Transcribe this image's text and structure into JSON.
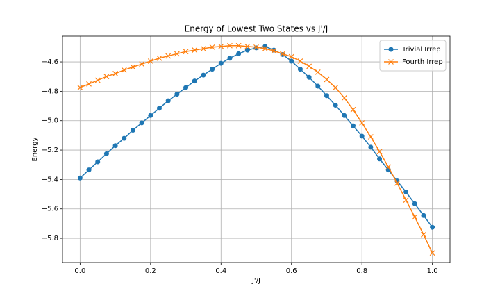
{
  "chart_data": {
    "type": "line",
    "title": "Energy of Lowest Two States vs J'/J",
    "xlabel": "J'/J",
    "ylabel": "Energy",
    "x": [
      0,
      0.025,
      0.05,
      0.075,
      0.1,
      0.125,
      0.15,
      0.175,
      0.2,
      0.225,
      0.25,
      0.275,
      0.3,
      0.325,
      0.35,
      0.375,
      0.4,
      0.425,
      0.45,
      0.475,
      0.5,
      0.525,
      0.55,
      0.575,
      0.6,
      0.625,
      0.65,
      0.675,
      0.7,
      0.725,
      0.75,
      0.775,
      0.8,
      0.825,
      0.85,
      0.875,
      0.9,
      0.925,
      0.95,
      0.975,
      1.0
    ],
    "series": [
      {
        "name": "Trivial Irrep",
        "color": "#1f77b4",
        "marker": "o",
        "values": [
          -5.39,
          -5.335,
          -5.28,
          -5.225,
          -5.17,
          -5.12,
          -5.065,
          -5.015,
          -4.965,
          -4.915,
          -4.865,
          -4.82,
          -4.775,
          -4.73,
          -4.69,
          -4.65,
          -4.61,
          -4.575,
          -4.545,
          -4.52,
          -4.505,
          -4.495,
          -4.52,
          -4.55,
          -4.595,
          -4.65,
          -4.705,
          -4.765,
          -4.83,
          -4.895,
          -4.965,
          -5.035,
          -5.105,
          -5.18,
          -5.26,
          -5.335,
          -5.41,
          -5.485,
          -5.565,
          -5.645,
          -5.725
        ]
      },
      {
        "name": "Fourth Irrep",
        "color": "#ff7f0e",
        "marker": "x",
        "values": [
          -4.775,
          -4.75,
          -4.725,
          -4.7,
          -4.68,
          -4.655,
          -4.635,
          -4.615,
          -4.595,
          -4.575,
          -4.56,
          -4.545,
          -4.53,
          -4.52,
          -4.51,
          -4.5,
          -4.495,
          -4.49,
          -4.49,
          -4.495,
          -4.5,
          -4.51,
          -4.525,
          -4.545,
          -4.565,
          -4.595,
          -4.63,
          -4.67,
          -4.72,
          -4.775,
          -4.845,
          -4.925,
          -5.015,
          -5.11,
          -5.21,
          -5.315,
          -5.425,
          -5.54,
          -5.655,
          -5.775,
          -5.9
        ]
      }
    ],
    "xlim": [
      -0.05,
      1.05
    ],
    "ylim": [
      -5.965,
      -4.425
    ],
    "xticks": [
      {
        "value": 0,
        "label": "0.0"
      },
      0.2,
      0.4,
      0.6,
      0.8,
      {
        "value": 1,
        "label": "1.0"
      }
    ],
    "yticks": [
      {
        "value": -5.8,
        "label": "−5.8"
      },
      {
        "value": -5.6,
        "label": "−5.6"
      },
      {
        "value": -5.4,
        "label": "−5.4"
      },
      {
        "value": -5.2,
        "label": "−5.2"
      },
      {
        "value": -5.0,
        "label": "−5.0"
      },
      {
        "value": -4.8,
        "label": "−4.8"
      },
      {
        "value": -4.6,
        "label": "−4.6"
      }
    ],
    "grid": true,
    "legend": "upper right"
  }
}
